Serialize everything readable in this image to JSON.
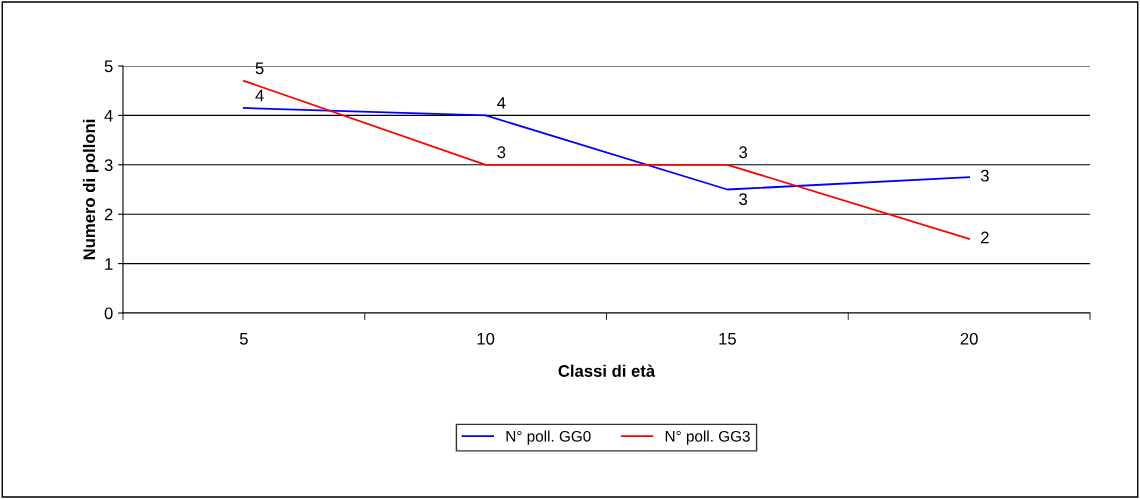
{
  "chart_data": {
    "type": "line",
    "xlabel": "Classi di età",
    "ylabel": "Numero di polloni",
    "categories": [
      "5",
      "10",
      "15",
      "20"
    ],
    "series": [
      {
        "name": "N° poll. GG0",
        "color": "#0000ff",
        "values": [
          4.15,
          4.0,
          2.5,
          2.75
        ],
        "value_labels": [
          "4",
          "4",
          "3",
          "3"
        ]
      },
      {
        "name": "N° poll. GG3",
        "color": "#ff0000",
        "values": [
          4.7,
          3.0,
          3.0,
          1.5
        ],
        "value_labels": [
          "5",
          "3",
          "3",
          "2"
        ]
      }
    ],
    "ylim": [
      0,
      5
    ],
    "yticks": [
      0,
      1,
      2,
      3,
      4,
      5
    ],
    "grid": "y",
    "legend": "bottom",
    "marker": "none",
    "line_style": "solid"
  }
}
